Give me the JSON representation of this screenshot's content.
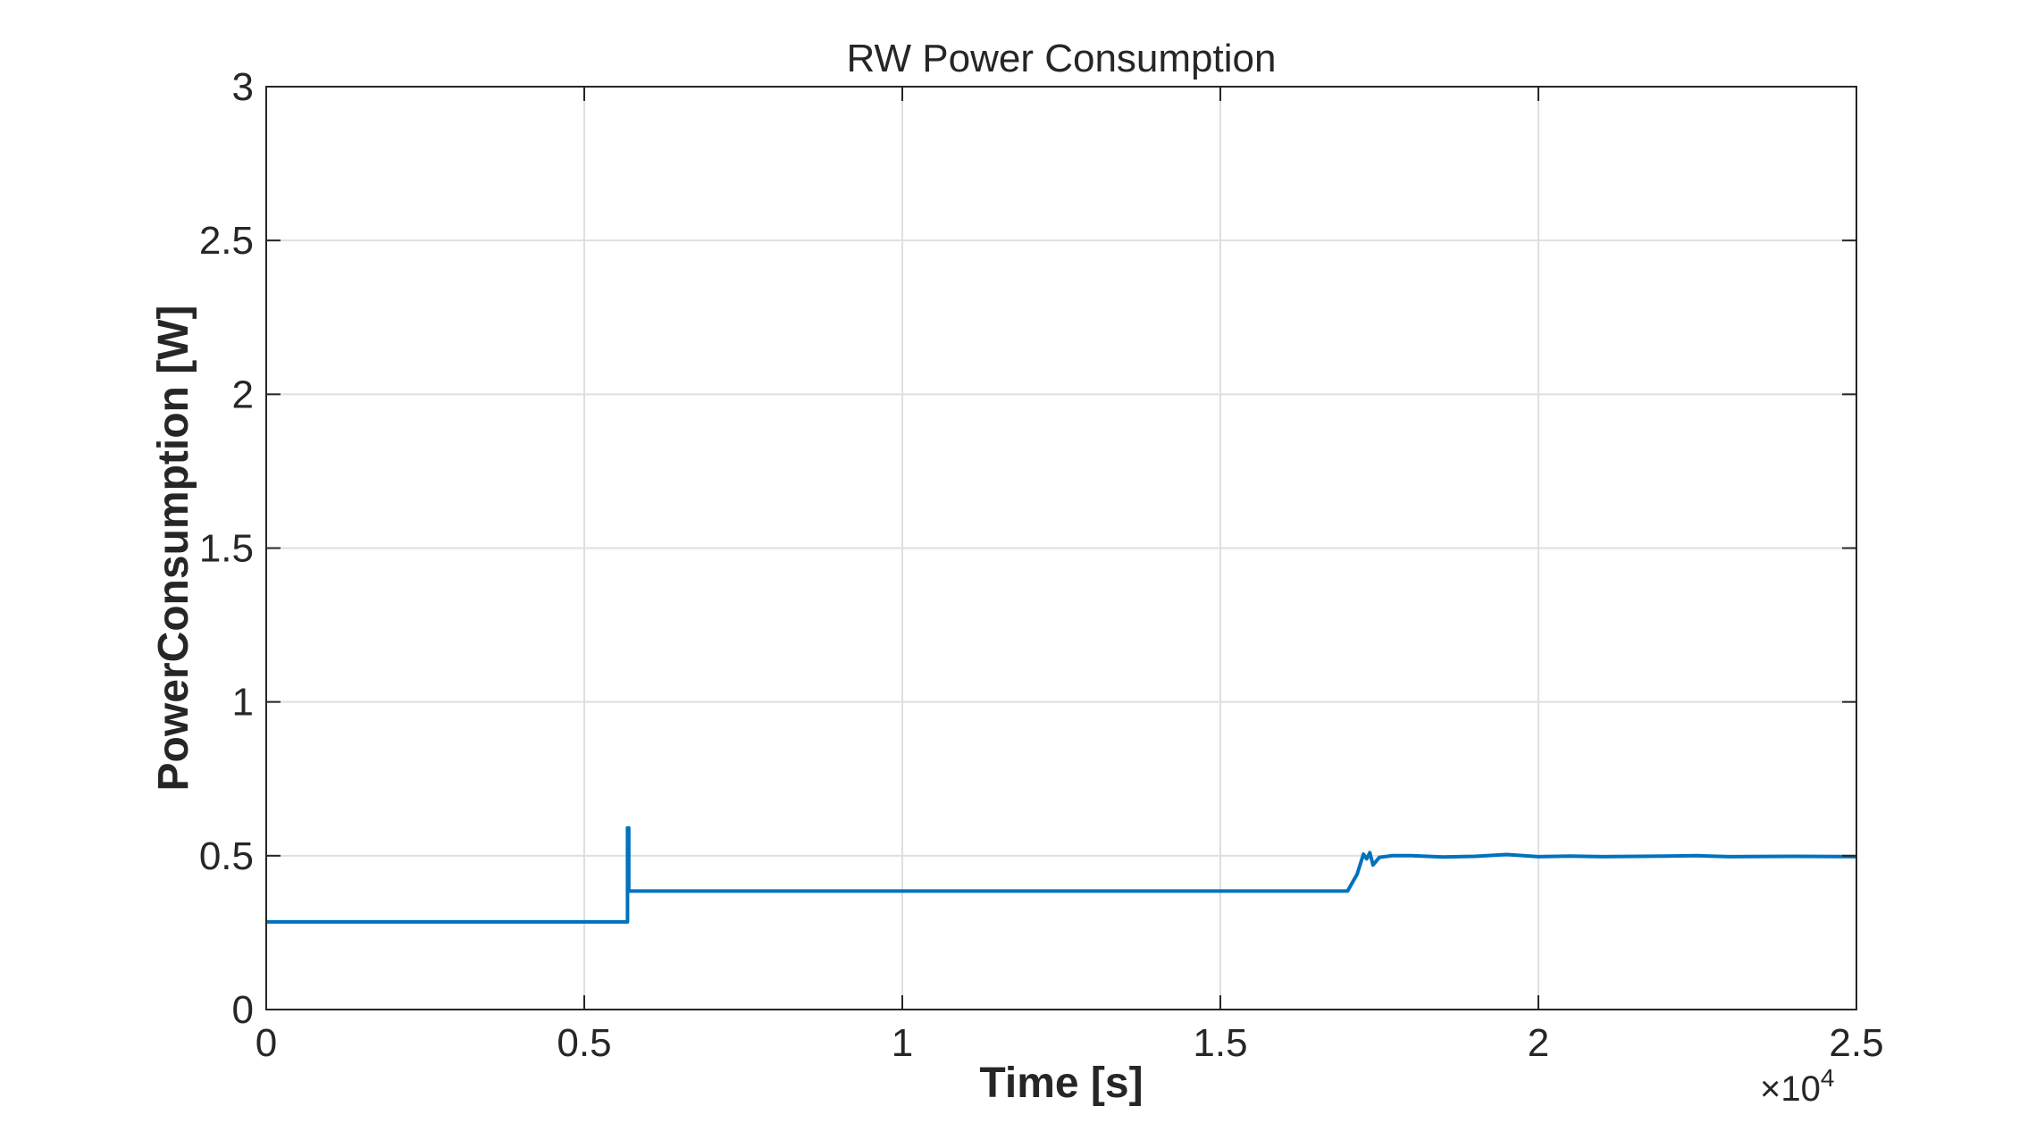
{
  "chart_data": {
    "type": "line",
    "title": "RW Power Consumption",
    "xlabel": "Time [s]",
    "ylabel": "PowerConsumption [W]",
    "xlim": [
      0,
      25000
    ],
    "ylim": [
      0,
      3
    ],
    "x_multiplier": "×10",
    "x_multiplier_exponent": "4",
    "xticks": [
      0,
      5000,
      10000,
      15000,
      20000,
      25000
    ],
    "xtick_labels": [
      "0",
      "0.5",
      "1",
      "1.5",
      "2",
      "2.5"
    ],
    "yticks": [
      0,
      0.5,
      1,
      1.5,
      2,
      2.5,
      3
    ],
    "ytick_labels": [
      "0",
      "0.5",
      "1",
      "1.5",
      "2",
      "2.5",
      "3"
    ],
    "grid": true,
    "line_color": "#0072BD",
    "series": [
      {
        "x": [
          0,
          5680,
          5680,
          5700,
          5700,
          11000,
          17000,
          17150,
          17250,
          17300,
          17350,
          17400,
          17500,
          17700,
          18000,
          18500,
          19000,
          19500,
          20000,
          20500,
          21000,
          22000,
          22500,
          23000,
          24000,
          25000
        ],
        "y": [
          0.285,
          0.285,
          0.59,
          0.59,
          0.385,
          0.385,
          0.385,
          0.44,
          0.505,
          0.49,
          0.51,
          0.47,
          0.495,
          0.5,
          0.5,
          0.496,
          0.498,
          0.504,
          0.497,
          0.499,
          0.497,
          0.499,
          0.5,
          0.497,
          0.498,
          0.497
        ]
      }
    ]
  }
}
